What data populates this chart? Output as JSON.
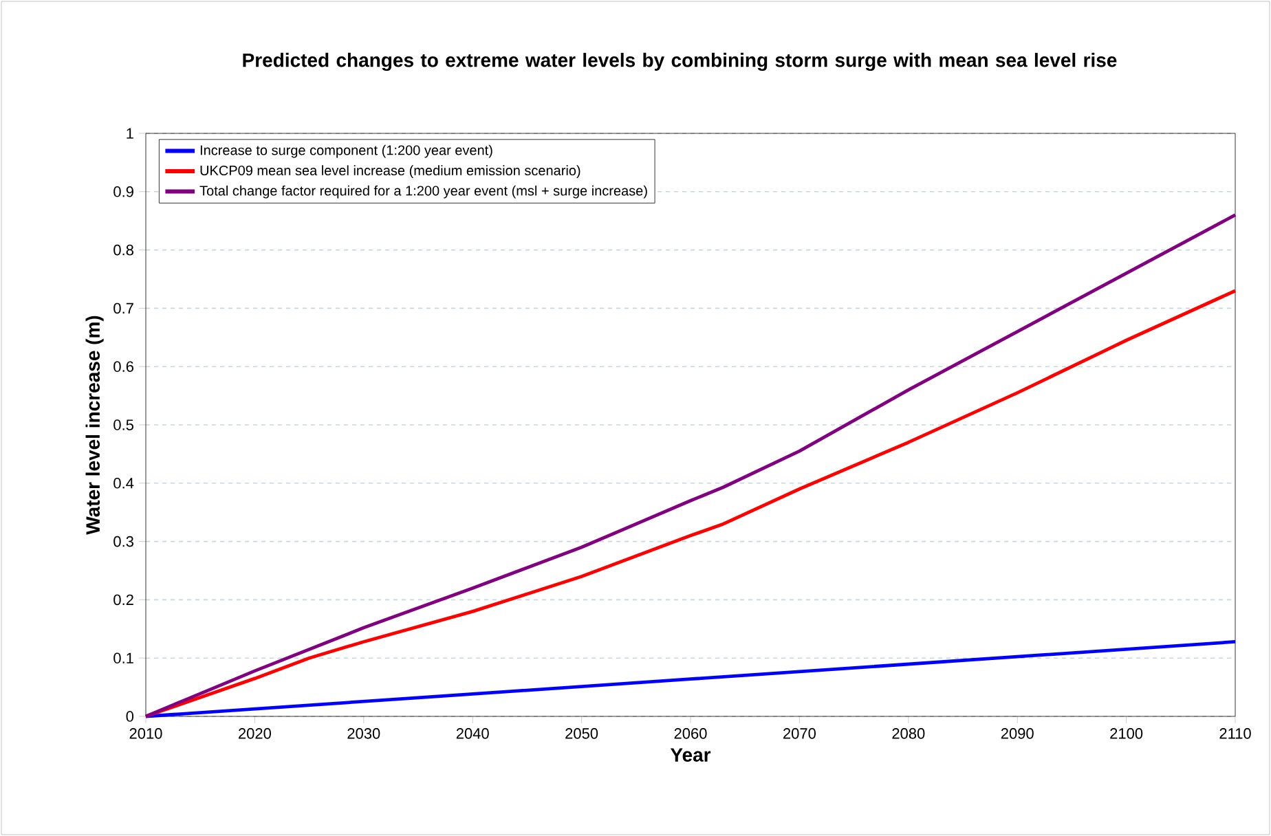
{
  "chart_data": {
    "type": "line",
    "title": "Predicted changes to extreme water levels by combining storm surge with mean sea level rise",
    "xlabel": "Year",
    "ylabel": "Water level increase (m)",
    "xlim": [
      2010,
      2110
    ],
    "xticks": [
      2010,
      2020,
      2030,
      2040,
      2050,
      2060,
      2070,
      2080,
      2090,
      2100,
      2110
    ],
    "ylim": [
      0,
      1
    ],
    "yticks": [
      0,
      0.1,
      0.2,
      0.3,
      0.4,
      0.5,
      0.6,
      0.7,
      0.8,
      0.9,
      1
    ],
    "grid": "y",
    "legend": "top left",
    "series": [
      {
        "name": "Increase to surge component (1:200 year event)",
        "color": "#0000ff",
        "x": [
          2010,
          2060,
          2110
        ],
        "values": [
          0,
          0.064,
          0.128
        ]
      },
      {
        "name": "UKCP09 mean sea level increase (medium emission scenario)",
        "color": "#ff0000",
        "x": [
          2010,
          2020,
          2025,
          2030,
          2040,
          2045,
          2050,
          2060,
          2063,
          2070,
          2080,
          2090,
          2100,
          2110
        ],
        "values": [
          0,
          0.065,
          0.1,
          0.128,
          0.18,
          0.21,
          0.24,
          0.31,
          0.33,
          0.39,
          0.47,
          0.555,
          0.645,
          0.73
        ]
      },
      {
        "name": "Total change factor required for a 1:200 year event (msl + surge increase)",
        "color": "#800080",
        "x": [
          2010,
          2020,
          2030,
          2040,
          2045,
          2050,
          2060,
          2063,
          2070,
          2080,
          2090,
          2100,
          2110
        ],
        "values": [
          0,
          0.078,
          0.152,
          0.22,
          0.255,
          0.29,
          0.37,
          0.393,
          0.455,
          0.56,
          0.66,
          0.76,
          0.86
        ]
      }
    ]
  }
}
